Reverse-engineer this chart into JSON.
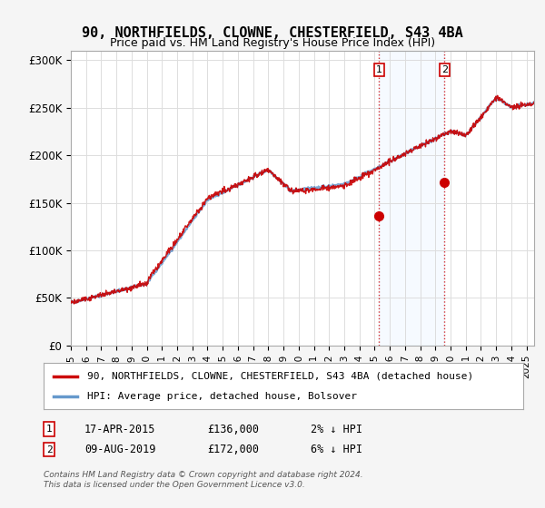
{
  "title": "90, NORTHFIELDS, CLOWNE, CHESTERFIELD, S43 4BA",
  "subtitle": "Price paid vs. HM Land Registry's House Price Index (HPI)",
  "ylabel_ticks": [
    "£0",
    "£50K",
    "£100K",
    "£150K",
    "£200K",
    "£250K",
    "£300K"
  ],
  "ytick_values": [
    0,
    50000,
    100000,
    150000,
    200000,
    250000,
    300000
  ],
  "ylim": [
    0,
    310000
  ],
  "xlim_start": 1995.0,
  "xlim_end": 2025.5,
  "hpi_color": "#6699cc",
  "price_color": "#cc0000",
  "marker1_date": 2015.29,
  "marker1_value": 136000,
  "marker1_label": "1",
  "marker2_date": 2019.6,
  "marker2_value": 172000,
  "marker2_label": "2",
  "annotation1": "17-APR-2015    £136,000    2% ↓ HPI",
  "annotation2": "09-AUG-2019    £172,000    6% ↓ HPI",
  "legend_label1": "90, NORTHFIELDS, CLOWNE, CHESTERFIELD, S43 4BA (detached house)",
  "legend_label2": "HPI: Average price, detached house, Bolsover",
  "footer": "Contains HM Land Registry data © Crown copyright and database right 2024.\nThis data is licensed under the Open Government Licence v3.0.",
  "background_color": "#f5f5f5",
  "plot_bg_color": "#ffffff",
  "highlight_color": "#ddeeff"
}
